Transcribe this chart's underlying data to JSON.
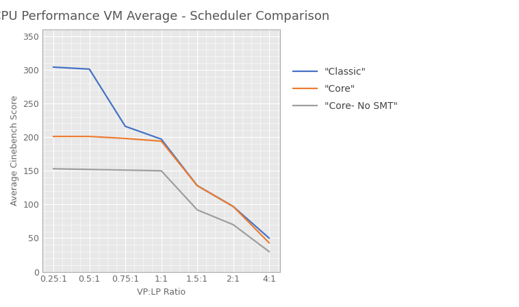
{
  "title": "CPU Performance VM Average - Scheduler Comparison",
  "xlabel": "VP:LP Ratio",
  "ylabel": "Average Cinebench Score",
  "x_labels": [
    "0.25:1",
    "0.5:1",
    "0.75:1",
    "1:1",
    "1.5:1",
    "2:1",
    "4:1"
  ],
  "series": [
    {
      "label": "\"Classic\"",
      "color": "#4472C4",
      "values": [
        304,
        301,
        216,
        197,
        128,
        97,
        50
      ]
    },
    {
      "label": "\"Core\"",
      "color": "#ED7D31",
      "values": [
        201,
        201,
        198,
        194,
        128,
        97,
        43
      ]
    },
    {
      "label": "\"Core- No SMT\"",
      "color": "#9E9E9E",
      "values": [
        153,
        152,
        151,
        150,
        92,
        70,
        30
      ]
    }
  ],
  "ylim": [
    0,
    360
  ],
  "yticks": [
    0,
    50,
    100,
    150,
    200,
    250,
    300,
    350
  ],
  "plot_bg_color": "#e8e8e8",
  "figure_bg": "#ffffff",
  "grid_color": "#ffffff",
  "hatch_color": "#d0d0d0",
  "title_fontsize": 13,
  "axis_label_fontsize": 9,
  "tick_fontsize": 9,
  "legend_fontsize": 10,
  "line_width": 1.6,
  "tick_color": "#666666",
  "title_color": "#555555"
}
